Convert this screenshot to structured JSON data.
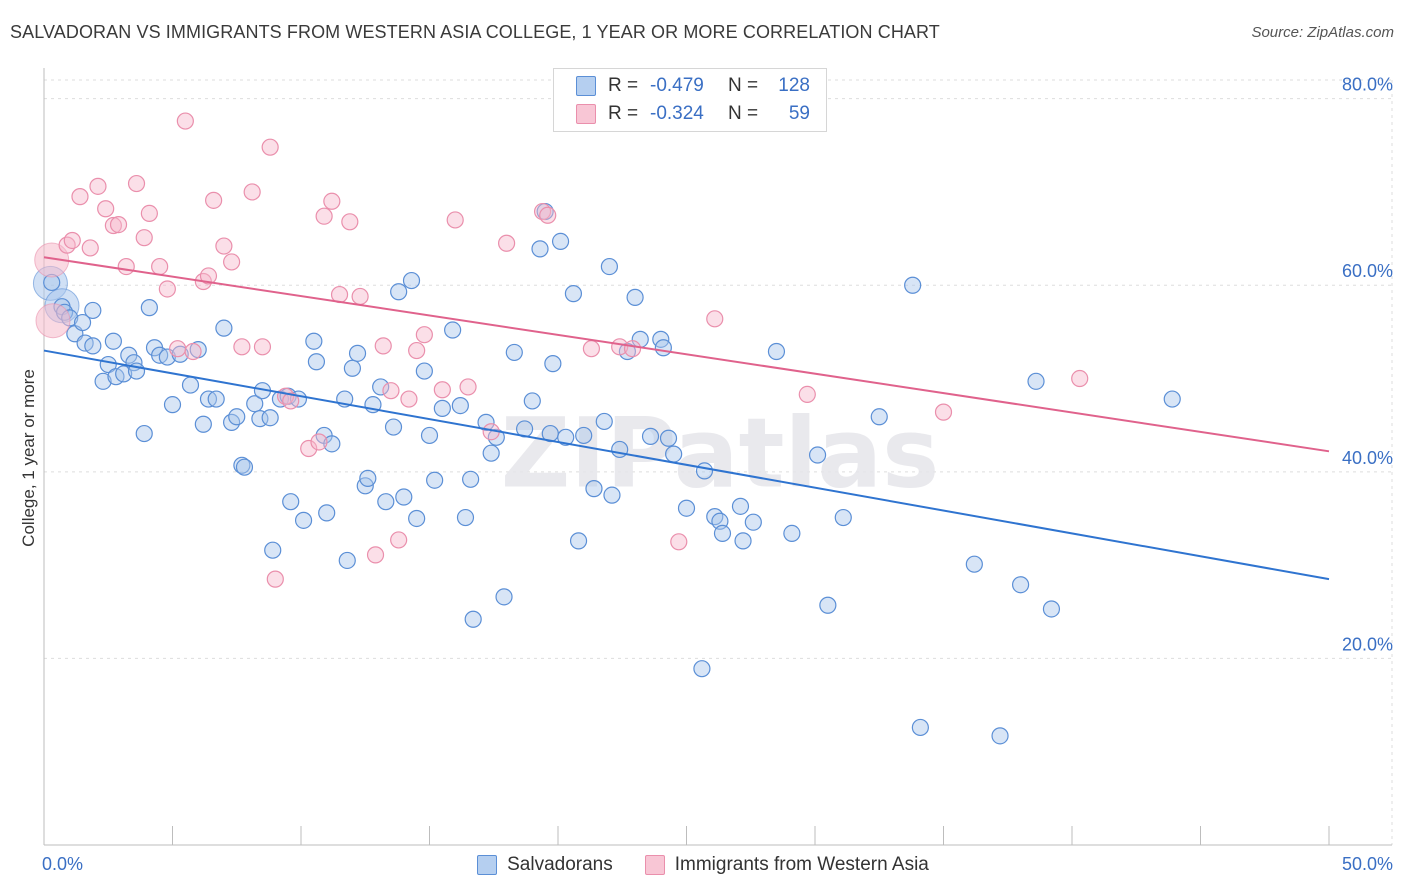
{
  "title": "SALVADORAN VS IMMIGRANTS FROM WESTERN ASIA COLLEGE, 1 YEAR OR MORE CORRELATION CHART",
  "source": "Source: ZipAtlas.com",
  "watermark": "ZIPatlas",
  "colors": {
    "blue_fill": "#a9c6ec",
    "blue_stroke": "#5b8fd6",
    "blue_line": "#2f74d0",
    "pink_fill": "#f6b9cb",
    "pink_stroke": "#ea8fac",
    "pink_line": "#e0628c",
    "tick_text": "#3a6fc4",
    "grid": "#dddddd"
  },
  "legend_top": [
    {
      "r_label": "R =",
      "r_value": "-0.479",
      "n_label": "N =",
      "n_value": "128",
      "color": "blue"
    },
    {
      "r_label": "R =",
      "r_value": "-0.324",
      "n_label": "N =",
      "n_value": "59",
      "color": "pink"
    }
  ],
  "legend_bottom": [
    {
      "label": "Salvadorans",
      "color": "blue"
    },
    {
      "label": "Immigrants from Western Asia",
      "color": "pink"
    }
  ],
  "chart_data": {
    "type": "scatter",
    "title": "SALVADORAN VS IMMIGRANTS FROM WESTERN ASIA COLLEGE, 1 YEAR OR MORE CORRELATION CHART",
    "xlabel": "",
    "ylabel": "College, 1 year or more",
    "xlim": [
      0,
      50
    ],
    "ylim": [
      0,
      82
    ],
    "x_tick_labels": [
      {
        "value": 0,
        "label": "0.0%"
      },
      {
        "value": 50,
        "label": "50.0%"
      }
    ],
    "x_minor_ticks": [
      5,
      10,
      15,
      20,
      25,
      30,
      35,
      40,
      45,
      50
    ],
    "y_ticks": [
      {
        "value": 20,
        "label": "20.0%"
      },
      {
        "value": 40,
        "label": "40.0%"
      },
      {
        "value": 60,
        "label": "60.0%"
      },
      {
        "value": 80,
        "label": "80.0%"
      }
    ],
    "grid": true,
    "legend_position": "top-center",
    "series": [
      {
        "name": "Salvadorans",
        "color": "blue",
        "trend": {
          "x0": 0,
          "y0": 53.0,
          "x1": 50,
          "y1": 28.5
        },
        "points": [
          [
            0.3,
            60.3
          ],
          [
            0.7,
            57.7
          ],
          [
            0.8,
            57.1
          ],
          [
            1.0,
            56.5
          ],
          [
            1.2,
            54.8
          ],
          [
            1.5,
            56.0
          ],
          [
            1.6,
            53.8
          ],
          [
            1.9,
            57.3
          ],
          [
            1.9,
            53.5
          ],
          [
            2.3,
            49.7
          ],
          [
            2.5,
            51.5
          ],
          [
            2.7,
            54.0
          ],
          [
            2.8,
            50.2
          ],
          [
            3.1,
            50.5
          ],
          [
            3.3,
            52.5
          ],
          [
            3.5,
            51.7
          ],
          [
            3.6,
            50.8
          ],
          [
            3.9,
            44.1
          ],
          [
            4.1,
            57.6
          ],
          [
            4.3,
            53.3
          ],
          [
            4.5,
            52.5
          ],
          [
            4.8,
            52.3
          ],
          [
            5.0,
            47.2
          ],
          [
            5.3,
            52.6
          ],
          [
            5.7,
            49.3
          ],
          [
            6.0,
            53.1
          ],
          [
            6.2,
            45.1
          ],
          [
            6.4,
            47.8
          ],
          [
            6.7,
            47.8
          ],
          [
            7.0,
            55.4
          ],
          [
            7.3,
            45.3
          ],
          [
            7.5,
            45.9
          ],
          [
            7.7,
            40.7
          ],
          [
            7.8,
            40.5
          ],
          [
            8.2,
            47.3
          ],
          [
            8.4,
            45.7
          ],
          [
            8.5,
            48.7
          ],
          [
            8.8,
            45.8
          ],
          [
            8.9,
            31.6
          ],
          [
            9.2,
            47.8
          ],
          [
            9.5,
            48.1
          ],
          [
            9.6,
            36.8
          ],
          [
            9.9,
            47.8
          ],
          [
            10.1,
            34.8
          ],
          [
            10.5,
            54.0
          ],
          [
            10.6,
            51.8
          ],
          [
            10.9,
            43.9
          ],
          [
            11.2,
            43.0
          ],
          [
            11.0,
            35.6
          ],
          [
            11.7,
            47.8
          ],
          [
            11.8,
            30.5
          ],
          [
            12.0,
            51.1
          ],
          [
            12.2,
            52.7
          ],
          [
            12.5,
            38.5
          ],
          [
            12.6,
            39.3
          ],
          [
            12.8,
            47.2
          ],
          [
            13.1,
            49.1
          ],
          [
            13.3,
            36.8
          ],
          [
            13.6,
            44.8
          ],
          [
            13.8,
            59.3
          ],
          [
            14.0,
            37.3
          ],
          [
            14.3,
            60.5
          ],
          [
            14.5,
            35.0
          ],
          [
            14.8,
            50.8
          ],
          [
            15.0,
            43.9
          ],
          [
            15.2,
            39.1
          ],
          [
            15.5,
            46.8
          ],
          [
            15.9,
            55.2
          ],
          [
            16.2,
            47.1
          ],
          [
            16.4,
            35.1
          ],
          [
            16.6,
            39.2
          ],
          [
            16.7,
            24.2
          ],
          [
            17.2,
            45.3
          ],
          [
            17.4,
            42.0
          ],
          [
            17.6,
            43.7
          ],
          [
            17.9,
            26.6
          ],
          [
            18.3,
            52.8
          ],
          [
            18.7,
            44.6
          ],
          [
            19.0,
            47.6
          ],
          [
            19.3,
            63.9
          ],
          [
            19.5,
            67.9
          ],
          [
            19.7,
            44.1
          ],
          [
            19.8,
            51.6
          ],
          [
            20.1,
            64.7
          ],
          [
            20.3,
            43.7
          ],
          [
            20.6,
            59.1
          ],
          [
            20.8,
            32.6
          ],
          [
            21.0,
            43.9
          ],
          [
            21.4,
            38.2
          ],
          [
            21.8,
            45.4
          ],
          [
            22.0,
            62.0
          ],
          [
            22.1,
            37.5
          ],
          [
            22.4,
            42.4
          ],
          [
            22.7,
            52.9
          ],
          [
            23.0,
            58.7
          ],
          [
            23.2,
            54.2
          ],
          [
            23.6,
            43.8
          ],
          [
            24.0,
            54.2
          ],
          [
            24.1,
            53.3
          ],
          [
            24.3,
            43.6
          ],
          [
            24.5,
            41.9
          ],
          [
            25.0,
            36.1
          ],
          [
            25.6,
            18.9
          ],
          [
            25.7,
            40.1
          ],
          [
            26.1,
            35.2
          ],
          [
            26.3,
            34.7
          ],
          [
            26.4,
            33.4
          ],
          [
            27.1,
            36.3
          ],
          [
            27.2,
            32.6
          ],
          [
            27.6,
            34.6
          ],
          [
            28.5,
            52.9
          ],
          [
            29.1,
            33.4
          ],
          [
            30.1,
            41.8
          ],
          [
            30.5,
            25.7
          ],
          [
            31.1,
            35.1
          ],
          [
            32.5,
            45.9
          ],
          [
            33.8,
            60.0
          ],
          [
            34.1,
            12.6
          ],
          [
            36.2,
            30.1
          ],
          [
            37.2,
            11.7
          ],
          [
            38.0,
            27.9
          ],
          [
            38.6,
            49.7
          ],
          [
            39.2,
            25.3
          ],
          [
            43.9,
            47.8
          ]
        ],
        "large_points": [
          [
            0.25,
            60.2
          ],
          [
            0.7,
            57.8
          ]
        ]
      },
      {
        "name": "Immigrants from Western Asia",
        "color": "pink",
        "trend": {
          "x0": 0,
          "y0": 63.0,
          "x1": 50,
          "y1": 42.2
        },
        "points": [
          [
            0.9,
            64.3
          ],
          [
            1.1,
            64.8
          ],
          [
            1.4,
            69.5
          ],
          [
            1.8,
            64.0
          ],
          [
            2.1,
            70.6
          ],
          [
            2.4,
            68.2
          ],
          [
            2.7,
            66.4
          ],
          [
            2.9,
            66.5
          ],
          [
            3.2,
            62.0
          ],
          [
            3.6,
            70.9
          ],
          [
            3.9,
            65.1
          ],
          [
            4.1,
            67.7
          ],
          [
            4.5,
            62.0
          ],
          [
            4.8,
            59.6
          ],
          [
            5.2,
            53.2
          ],
          [
            5.5,
            77.6
          ],
          [
            5.8,
            52.9
          ],
          [
            6.2,
            60.4
          ],
          [
            6.4,
            61.0
          ],
          [
            6.6,
            69.1
          ],
          [
            7.0,
            64.2
          ],
          [
            7.3,
            62.5
          ],
          [
            7.7,
            53.4
          ],
          [
            8.1,
            70.0
          ],
          [
            8.5,
            53.4
          ],
          [
            8.8,
            74.8
          ],
          [
            9.0,
            28.5
          ],
          [
            9.4,
            48.1
          ],
          [
            9.6,
            47.6
          ],
          [
            10.3,
            42.5
          ],
          [
            10.7,
            43.2
          ],
          [
            10.9,
            67.4
          ],
          [
            11.2,
            69.0
          ],
          [
            11.5,
            59.0
          ],
          [
            11.9,
            66.8
          ],
          [
            12.3,
            58.8
          ],
          [
            12.9,
            31.1
          ],
          [
            13.2,
            53.5
          ],
          [
            13.5,
            48.7
          ],
          [
            13.8,
            32.7
          ],
          [
            14.2,
            47.8
          ],
          [
            14.5,
            53.0
          ],
          [
            14.8,
            54.7
          ],
          [
            15.5,
            48.8
          ],
          [
            16.0,
            67.0
          ],
          [
            16.5,
            49.1
          ],
          [
            17.4,
            44.3
          ],
          [
            18.0,
            64.5
          ],
          [
            19.4,
            67.9
          ],
          [
            19.6,
            67.5
          ],
          [
            21.3,
            53.2
          ],
          [
            22.4,
            53.4
          ],
          [
            22.9,
            53.2
          ],
          [
            24.7,
            32.5
          ],
          [
            26.1,
            56.4
          ],
          [
            29.7,
            48.3
          ],
          [
            35.0,
            46.4
          ],
          [
            40.3,
            50.0
          ]
        ],
        "large_points": [
          [
            0.3,
            62.7
          ],
          [
            0.35,
            56.2
          ]
        ]
      }
    ]
  }
}
